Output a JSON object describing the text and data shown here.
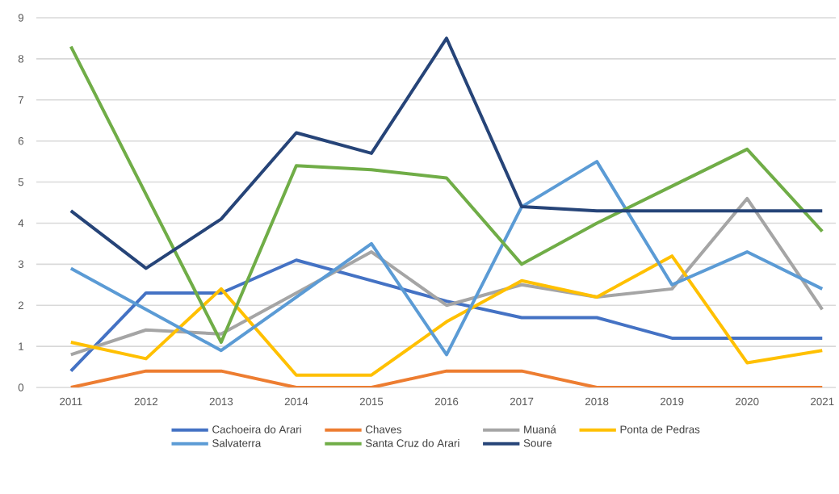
{
  "chart_data": {
    "type": "line",
    "categories": [
      "2011",
      "2012",
      "2013",
      "2014",
      "2015",
      "2016",
      "2017",
      "2018",
      "2019",
      "2020",
      "2021"
    ],
    "series": [
      {
        "name": "Cachoeira do Arari",
        "color": "#4472c4",
        "values": [
          0.4,
          2.3,
          2.3,
          3.1,
          2.6,
          2.1,
          1.7,
          1.7,
          1.2,
          1.2,
          1.2
        ]
      },
      {
        "name": "Chaves",
        "color": "#ed7d31",
        "values": [
          0,
          0.4,
          0.4,
          0,
          0,
          0.4,
          0.4,
          0,
          0,
          0,
          0
        ]
      },
      {
        "name": "Muaná",
        "color": "#a5a5a5",
        "values": [
          0.8,
          1.4,
          1.3,
          2.3,
          3.3,
          2.0,
          2.5,
          2.2,
          2.4,
          4.6,
          1.9
        ]
      },
      {
        "name": "Ponta de Pedras",
        "color": "#ffc000",
        "values": [
          1.1,
          0.7,
          2.4,
          0.3,
          0.3,
          1.6,
          2.6,
          2.2,
          3.2,
          0.6,
          0.9
        ]
      },
      {
        "name": "Salvaterra",
        "color": "#5b9bd5",
        "values": [
          2.9,
          1.9,
          0.9,
          2.2,
          3.5,
          0.8,
          4.4,
          5.5,
          2.5,
          3.3,
          2.4
        ]
      },
      {
        "name": "Santa Cruz do Arari",
        "color": "#70ad47",
        "values": [
          8.3,
          4.7,
          1.1,
          5.4,
          5.3,
          5.1,
          3.0,
          4.0,
          4.9,
          5.8,
          3.8
        ]
      },
      {
        "name": "Soure",
        "color": "#264478",
        "values": [
          4.3,
          2.9,
          4.1,
          6.2,
          5.7,
          8.5,
          4.4,
          4.3,
          4.3,
          4.3,
          4.3
        ]
      }
    ],
    "ylim": [
      0,
      9
    ],
    "yticks": [
      0,
      1,
      2,
      3,
      4,
      5,
      6,
      7,
      8,
      9
    ],
    "grid": "y",
    "legend": "bottom",
    "marker": "none",
    "line_style": "solid"
  }
}
